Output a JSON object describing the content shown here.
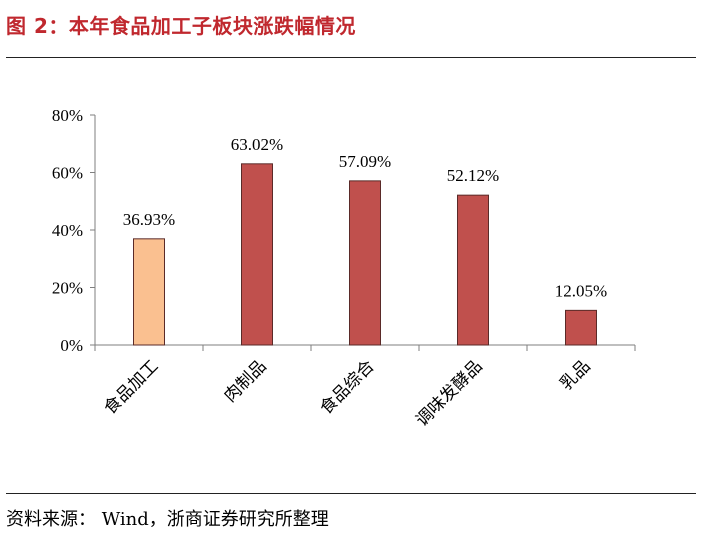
{
  "figure": {
    "title": "图 2：本年食品加工子板块涨跌幅情况",
    "source": "资料来源： Wind，浙商证券研究所整理"
  },
  "chart_data": {
    "type": "bar",
    "title": "",
    "xlabel": "",
    "ylabel": "",
    "categories": [
      "食品加工",
      "肉制品",
      "食品综合",
      "调味发酵品",
      "乳品"
    ],
    "values": [
      36.93,
      63.02,
      57.09,
      52.12,
      12.05
    ],
    "value_labels": [
      "36.93%",
      "63.02%",
      "57.09%",
      "52.12%",
      "12.05%"
    ],
    "ylim": [
      0,
      80
    ],
    "yticks": [
      0,
      20,
      40,
      60,
      80
    ],
    "ytick_labels": [
      "0%",
      "20%",
      "40%",
      "60%",
      "80%"
    ],
    "grid": false,
    "legend": "none",
    "bar_colors": [
      "#FAC090",
      "#C0504D",
      "#C0504D",
      "#C0504D",
      "#C0504D"
    ],
    "bar_stroke": "#5a2a28"
  }
}
